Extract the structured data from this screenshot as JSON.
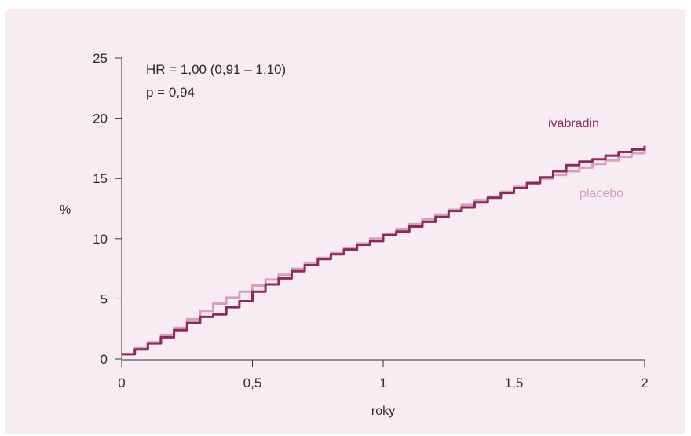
{
  "chart_data": {
    "type": "line",
    "xlabel": "roky",
    "ylabel": "%",
    "xlim": [
      0,
      2
    ],
    "ylim": [
      0,
      25
    ],
    "x_ticks": [
      {
        "value": 0,
        "label": "0"
      },
      {
        "value": 0.5,
        "label": "0,5"
      },
      {
        "value": 1,
        "label": "1"
      },
      {
        "value": 1.5,
        "label": "1,5"
      },
      {
        "value": 2,
        "label": "2"
      }
    ],
    "y_ticks": [
      {
        "value": 0,
        "label": "0"
      },
      {
        "value": 5,
        "label": "5"
      },
      {
        "value": 10,
        "label": "10"
      },
      {
        "value": 15,
        "label": "15"
      },
      {
        "value": 20,
        "label": "20"
      },
      {
        "value": 25,
        "label": "25"
      }
    ],
    "grid": false,
    "annotations": [
      "HR = 1,00 (0,91 – 1,10)",
      "p = 0,94"
    ],
    "series": [
      {
        "name": "ivabradin",
        "color": "#8e2a5a",
        "x": [
          0,
          0.05,
          0.1,
          0.15,
          0.2,
          0.25,
          0.3,
          0.35,
          0.4,
          0.45,
          0.5,
          0.55,
          0.6,
          0.65,
          0.7,
          0.75,
          0.8,
          0.85,
          0.9,
          0.95,
          1.0,
          1.05,
          1.1,
          1.15,
          1.2,
          1.25,
          1.3,
          1.35,
          1.4,
          1.45,
          1.5,
          1.55,
          1.6,
          1.65,
          1.7,
          1.75,
          1.8,
          1.85,
          1.9,
          1.95,
          2.0
        ],
        "y": [
          0.4,
          0.8,
          1.3,
          1.8,
          2.4,
          3.0,
          3.5,
          3.7,
          4.3,
          4.8,
          5.6,
          6.2,
          6.7,
          7.3,
          7.8,
          8.3,
          8.7,
          9.1,
          9.5,
          9.8,
          10.3,
          10.6,
          11.0,
          11.4,
          11.8,
          12.3,
          12.6,
          13.0,
          13.4,
          13.8,
          14.2,
          14.6,
          15.1,
          15.6,
          16.1,
          16.4,
          16.6,
          16.9,
          17.2,
          17.4,
          17.7
        ]
      },
      {
        "name": "placebo",
        "color": "#d79fb9",
        "x": [
          0,
          0.05,
          0.1,
          0.15,
          0.2,
          0.25,
          0.3,
          0.35,
          0.4,
          0.45,
          0.5,
          0.55,
          0.6,
          0.65,
          0.7,
          0.75,
          0.8,
          0.85,
          0.9,
          0.95,
          1.0,
          1.05,
          1.1,
          1.15,
          1.2,
          1.25,
          1.3,
          1.35,
          1.4,
          1.45,
          1.5,
          1.55,
          1.6,
          1.65,
          1.7,
          1.75,
          1.8,
          1.85,
          1.9,
          1.95,
          2.0
        ],
        "y": [
          0.4,
          0.9,
          1.4,
          2.0,
          2.6,
          3.3,
          4.0,
          4.6,
          5.1,
          5.6,
          6.1,
          6.6,
          7.0,
          7.5,
          8.0,
          8.4,
          8.8,
          9.2,
          9.6,
          10.0,
          10.4,
          10.8,
          11.2,
          11.6,
          12.0,
          12.4,
          12.8,
          13.2,
          13.5,
          13.9,
          14.3,
          14.7,
          15.0,
          15.3,
          15.6,
          15.9,
          16.2,
          16.5,
          16.8,
          17.1,
          17.4
        ]
      }
    ]
  }
}
